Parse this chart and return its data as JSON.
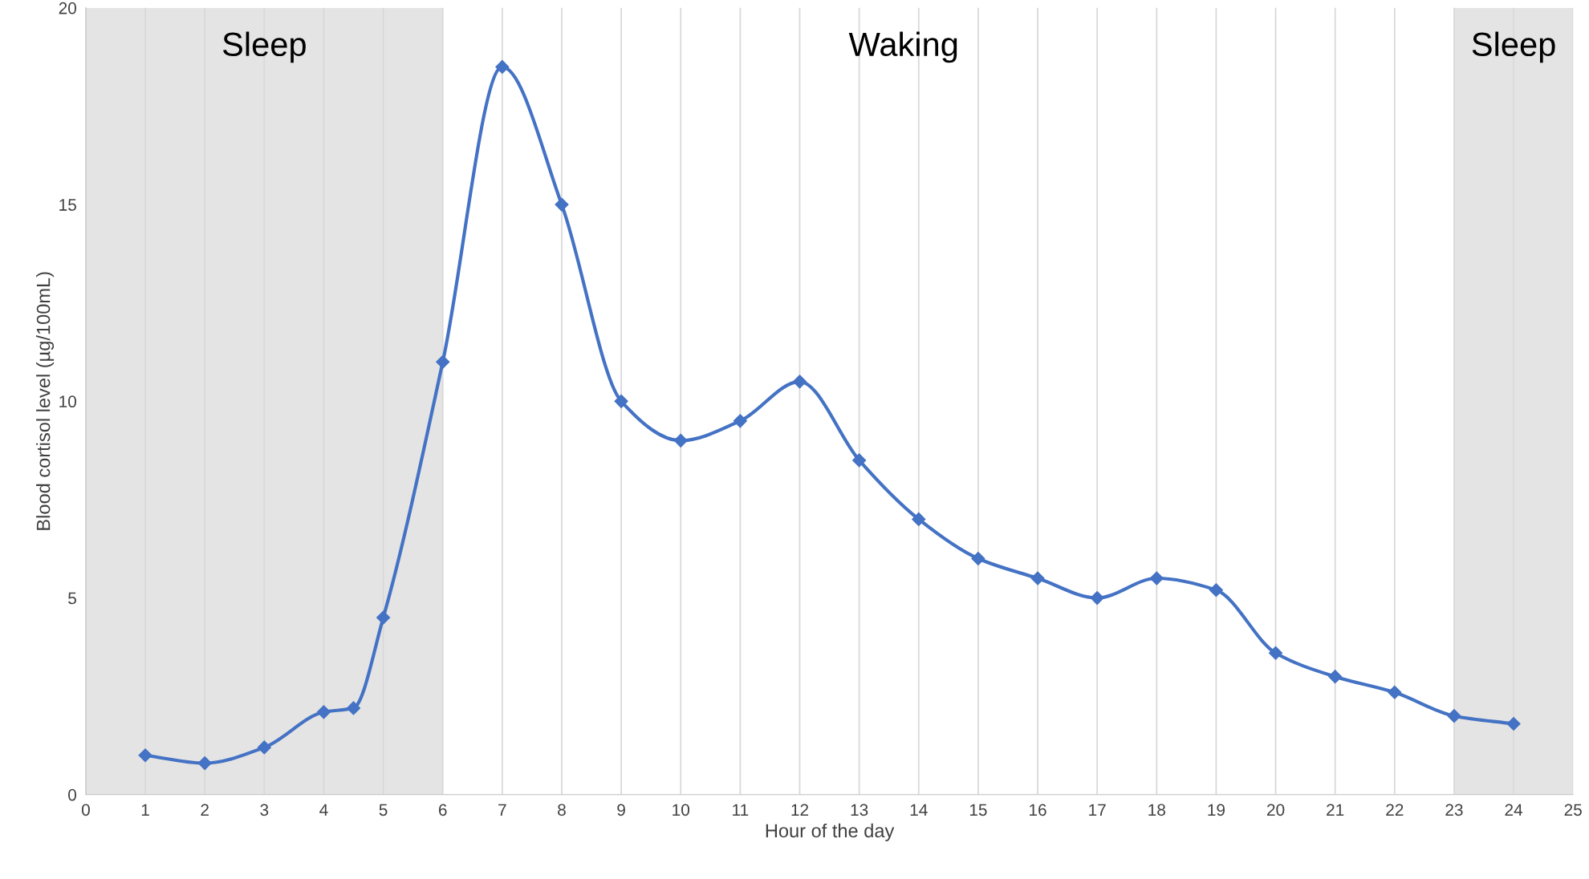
{
  "chart_data": {
    "type": "line",
    "xlabel": "Hour of the day",
    "ylabel": "Blood cortisol level (µg/100mL)",
    "x": [
      1,
      2,
      3,
      4,
      4.5,
      5,
      6,
      7,
      8,
      9,
      10,
      11,
      12,
      13,
      14,
      15,
      16,
      17,
      18,
      19,
      20,
      21,
      22,
      23,
      24
    ],
    "series": [
      {
        "color": "#4472c4",
        "values": [
          1.0,
          0.8,
          1.2,
          2.1,
          2.2,
          4.5,
          11.0,
          18.5,
          15.0,
          10.0,
          9.0,
          9.5,
          10.5,
          8.5,
          7.0,
          6.0,
          5.5,
          5.0,
          5.5,
          5.2,
          3.6,
          3.0,
          2.6,
          2.0,
          1.8
        ]
      }
    ],
    "xlim": [
      0,
      25
    ],
    "xticks": [
      0,
      1,
      2,
      3,
      4,
      5,
      6,
      7,
      8,
      9,
      10,
      11,
      12,
      13,
      14,
      15,
      16,
      17,
      18,
      19,
      20,
      21,
      22,
      23,
      24,
      25
    ],
    "ylim": [
      0,
      20
    ],
    "yticks": [
      0,
      5,
      10,
      15,
      20
    ],
    "bands": [
      {
        "axis": "x",
        "from": 0,
        "to": 6,
        "label": "Sleep",
        "color": "#e4e4e4"
      },
      {
        "axis": "x",
        "from": 23,
        "to": 25,
        "label": "Sleep",
        "color": "#e4e4e4"
      }
    ],
    "annotations": [
      "Waking"
    ],
    "grid": "x",
    "marker": "diamond",
    "line_style": "solid"
  }
}
